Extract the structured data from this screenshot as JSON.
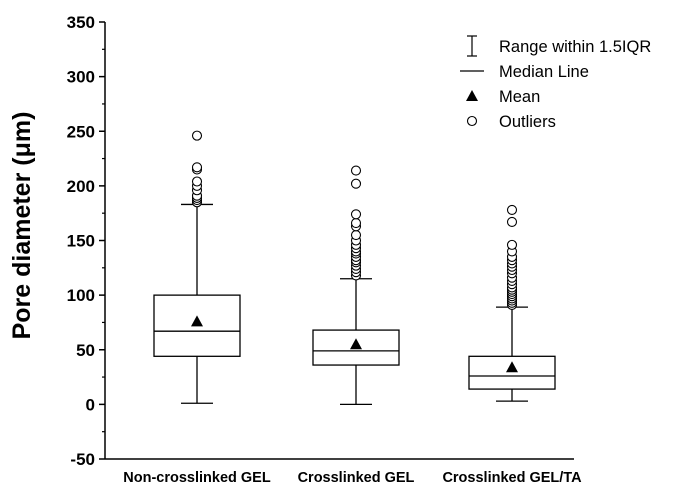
{
  "chart_data": {
    "type": "box",
    "ylabel": "Pore diameter (μm)",
    "ylim": [
      -50,
      350
    ],
    "yticks": [
      -50,
      0,
      50,
      100,
      150,
      200,
      250,
      300,
      350
    ],
    "grid": false,
    "legend_position": "top-right",
    "legend": [
      {
        "symbol": "range",
        "label": "Range within 1.5IQR"
      },
      {
        "symbol": "median",
        "label": "Median Line"
      },
      {
        "symbol": "mean",
        "label": "Mean"
      },
      {
        "symbol": "outlier",
        "label": "Outliers"
      }
    ],
    "categories": [
      "Non-crosslinked GEL",
      "Crosslinked GEL",
      "Crosslinked GEL/TA"
    ],
    "boxes": [
      {
        "category": "Non-crosslinked GEL",
        "whisker_low": 1,
        "q1": 44,
        "median": 67,
        "q3": 100,
        "whisker_high": 183,
        "mean": 76,
        "outliers": [
          185,
          187,
          189,
          191,
          196,
          200,
          204,
          215,
          217,
          246
        ]
      },
      {
        "category": "Crosslinked GEL",
        "whisker_low": 0,
        "q1": 36,
        "median": 49,
        "q3": 68,
        "whisker_high": 115,
        "mean": 55,
        "outliers": [
          118,
          121,
          124,
          127,
          130,
          132,
          135,
          138,
          140,
          143,
          146,
          150,
          155,
          163,
          166,
          174,
          202,
          214
        ]
      },
      {
        "category": "Crosslinked GEL/TA",
        "whisker_low": 3,
        "q1": 14,
        "median": 26,
        "q3": 44,
        "whisker_high": 89,
        "mean": 34,
        "outliers": [
          91,
          93,
          95,
          97,
          99,
          101,
          103,
          105,
          107,
          110,
          113,
          116,
          120,
          123,
          126,
          129,
          132,
          135,
          140,
          146,
          167,
          178
        ]
      }
    ]
  }
}
